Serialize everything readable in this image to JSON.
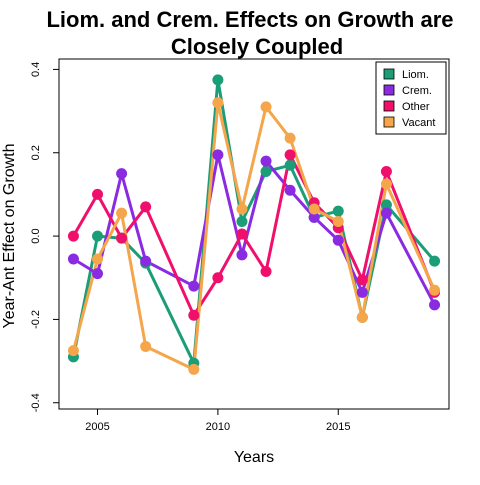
{
  "chart_data": {
    "type": "line",
    "title_line1": "Liom. and Crem. Effects on Growth are",
    "title_line2": "Closely Coupled",
    "xlabel": "Years",
    "ylabel": "Year-Ant Effect on Growth",
    "xlim": [
      2003.4,
      2019.6
    ],
    "ylim": [
      -0.415,
      0.425
    ],
    "x_ticks": [
      2005,
      2010,
      2015
    ],
    "y_ticks": [
      -0.4,
      -0.2,
      0.0,
      0.2,
      0.4
    ],
    "x_tick_labels": [
      "2005",
      "2010",
      "2015"
    ],
    "y_tick_labels": [
      "-0.4",
      "-0.2",
      "0.0",
      "0.2",
      "0.4"
    ],
    "grid": false,
    "legend_position": "top-right",
    "series": [
      {
        "name": "Liom.",
        "color": "#1b9e77",
        "x": [
          2004,
          2005,
          2006,
          2007,
          2009,
          2010,
          2011,
          2012,
          2013,
          2014,
          2015,
          2016,
          2017,
          2019
        ],
        "y": [
          -0.29,
          0.0,
          -0.005,
          -0.065,
          -0.305,
          0.375,
          0.035,
          0.155,
          0.17,
          0.045,
          0.06,
          -0.195,
          0.075,
          -0.06
        ]
      },
      {
        "name": "Crem.",
        "color": "#8a2be2",
        "x": [
          2004,
          2005,
          2006,
          2007,
          2009,
          2010,
          2011,
          2012,
          2013,
          2014,
          2015,
          2016,
          2017,
          2019
        ],
        "y": [
          -0.055,
          -0.09,
          0.15,
          -0.06,
          -0.12,
          0.195,
          -0.045,
          0.18,
          0.11,
          0.045,
          -0.01,
          -0.135,
          0.055,
          -0.165
        ]
      },
      {
        "name": "Other",
        "color": "#f0106b",
        "x": [
          2004,
          2005,
          2006,
          2007,
          2009,
          2010,
          2011,
          2012,
          2013,
          2014,
          2015,
          2016,
          2017,
          2019
        ],
        "y": [
          0.0,
          0.1,
          -0.005,
          0.07,
          -0.19,
          -0.1,
          0.005,
          -0.085,
          0.195,
          0.08,
          0.02,
          -0.105,
          0.155,
          -0.135
        ]
      },
      {
        "name": "Vacant",
        "color": "#f5a54a",
        "x": [
          2004,
          2005,
          2006,
          2007,
          2009,
          2010,
          2011,
          2012,
          2013,
          2014,
          2015,
          2016,
          2017,
          2019
        ],
        "y": [
          -0.275,
          -0.055,
          0.055,
          -0.265,
          -0.32,
          0.32,
          0.065,
          0.31,
          0.235,
          0.065,
          0.035,
          -0.195,
          0.125,
          -0.13
        ]
      }
    ]
  }
}
